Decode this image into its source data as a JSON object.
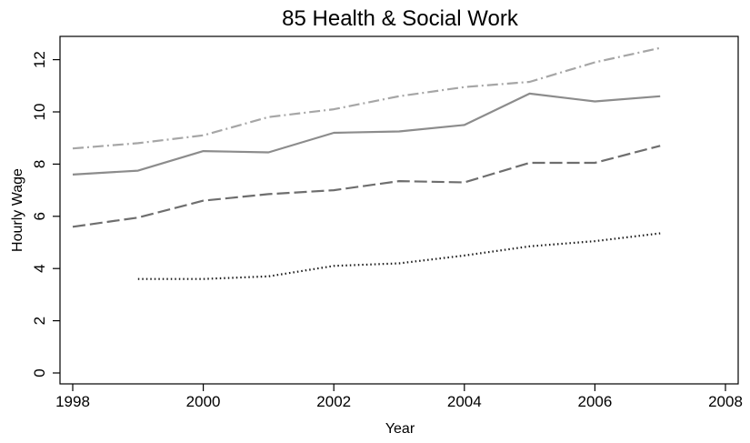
{
  "chart_data": {
    "type": "line",
    "title": "85 Health & Social Work",
    "xlabel": "Year",
    "ylabel": "Hourly Wage",
    "xlim": [
      1998,
      2008
    ],
    "ylim": [
      0,
      13
    ],
    "xticks": [
      1998,
      2000,
      2002,
      2004,
      2006,
      2008
    ],
    "yticks": [
      0,
      2,
      4,
      6,
      8,
      10,
      12
    ],
    "grid": false,
    "legend": "none",
    "series": [
      {
        "style": "dash-dot",
        "color": "#a6a6a6",
        "x": [
          1998,
          1999,
          2000,
          2001,
          2002,
          2003,
          2004,
          2005,
          2006,
          2007
        ],
        "values": [
          8.6,
          8.8,
          9.1,
          9.8,
          10.1,
          10.6,
          10.95,
          11.15,
          11.9,
          12.45
        ]
      },
      {
        "style": "solid",
        "color": "#8c8c8c",
        "x": [
          1998,
          1999,
          2000,
          2001,
          2002,
          2003,
          2004,
          2005,
          2006,
          2007
        ],
        "values": [
          7.6,
          7.75,
          8.5,
          8.45,
          9.2,
          9.25,
          9.5,
          10.7,
          10.4,
          10.6
        ]
      },
      {
        "style": "dashed",
        "color": "#6e6e6e",
        "x": [
          1998,
          1999,
          2000,
          2001,
          2002,
          2003,
          2004,
          2005,
          2006,
          2007
        ],
        "values": [
          5.6,
          5.95,
          6.6,
          6.85,
          7.0,
          7.35,
          7.3,
          8.05,
          8.05,
          8.7
        ]
      },
      {
        "style": "dotted",
        "color": "#1a1a1a",
        "x": [
          1999,
          2000,
          2001,
          2002,
          2003,
          2004,
          2005,
          2006,
          2007
        ],
        "values": [
          3.6,
          3.6,
          3.7,
          4.1,
          4.2,
          4.5,
          4.85,
          5.05,
          5.35
        ]
      }
    ]
  }
}
